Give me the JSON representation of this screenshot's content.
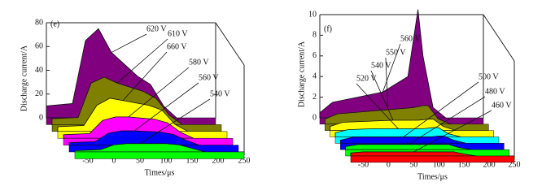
{
  "chart_data": [
    {
      "type": "waterfall",
      "panel_label": "(e)",
      "x_label": "Times/μs",
      "y_label": "Discharge current/A",
      "x": [
        -75,
        -25,
        0,
        25,
        50,
        100,
        125,
        150,
        175
      ],
      "xlim": [
        -75,
        250
      ],
      "xticks": [
        -50,
        0,
        50,
        100,
        150,
        200,
        250
      ],
      "ylim": [
        0,
        80
      ],
      "yticks": [
        0,
        20,
        40,
        60,
        80
      ],
      "series": [
        {
          "name": "620 V",
          "color": "#800080",
          "values": [
            10,
            12,
            65,
            75,
            55,
            35,
            28,
            10,
            0
          ]
        },
        {
          "name": "610 V",
          "color": "#808000",
          "values": [
            5,
            6,
            35,
            40,
            35,
            28,
            22,
            8,
            0
          ]
        },
        {
          "name": "660 V",
          "color": "#ffff00",
          "values": [
            4,
            5,
            22,
            28,
            26,
            22,
            18,
            6,
            0
          ]
        },
        {
          "name": "580 V",
          "color": "#ff00ff",
          "values": [
            3,
            4,
            15,
            18,
            18,
            16,
            13,
            5,
            0
          ]
        },
        {
          "name": "560 V",
          "color": "#0000ff",
          "values": [
            2,
            3,
            10,
            12,
            12,
            11,
            9,
            4,
            0
          ]
        },
        {
          "name": "540 V",
          "color": "#00ff00",
          "values": [
            1,
            2,
            6,
            7,
            7,
            7,
            6,
            3,
            0
          ]
        }
      ]
    },
    {
      "type": "waterfall",
      "panel_label": "(f)",
      "x_label": "Times/μs",
      "y_label": "Discharge current/A",
      "x": [
        -75,
        -50,
        0,
        50,
        100,
        120,
        130,
        150,
        175
      ],
      "xlim": [
        -75,
        250
      ],
      "xticks": [
        -50,
        0,
        50,
        100,
        150,
        200,
        250
      ],
      "ylim": [
        0,
        10
      ],
      "yticks": [
        0,
        2,
        4,
        6,
        8,
        10
      ],
      "series": [
        {
          "name": "560 V",
          "color": "#800080",
          "values": [
            0.5,
            1.5,
            2,
            2.5,
            4,
            10.5,
            6,
            1,
            0
          ]
        },
        {
          "name": "550 V",
          "color": "#808000",
          "values": [
            0.5,
            1,
            1.2,
            1.4,
            1.6,
            1.8,
            1.8,
            0.5,
            0
          ]
        },
        {
          "name": "540 V",
          "color": "#ffff00",
          "values": [
            0.4,
            0.8,
            0.9,
            1,
            1,
            1.1,
            1.1,
            0.4,
            0
          ]
        },
        {
          "name": "520 V",
          "color": "#00ffff",
          "values": [
            0.4,
            0.7,
            0.8,
            0.8,
            0.8,
            0.9,
            0.9,
            0.3,
            0
          ]
        },
        {
          "name": "500 V",
          "color": "#0000ff",
          "values": [
            0.3,
            0.6,
            0.6,
            0.6,
            0.6,
            0.7,
            0.7,
            0.3,
            0
          ]
        },
        {
          "name": "480 V",
          "color": "#00ff00",
          "values": [
            0.3,
            0.5,
            0.5,
            0.5,
            0.5,
            0.5,
            0.5,
            0.2,
            0
          ]
        },
        {
          "name": "460 V",
          "color": "#ff0000",
          "values": [
            0.3,
            0.4,
            0.4,
            0.4,
            0.4,
            0.4,
            0.4,
            0.2,
            0
          ]
        }
      ]
    }
  ]
}
